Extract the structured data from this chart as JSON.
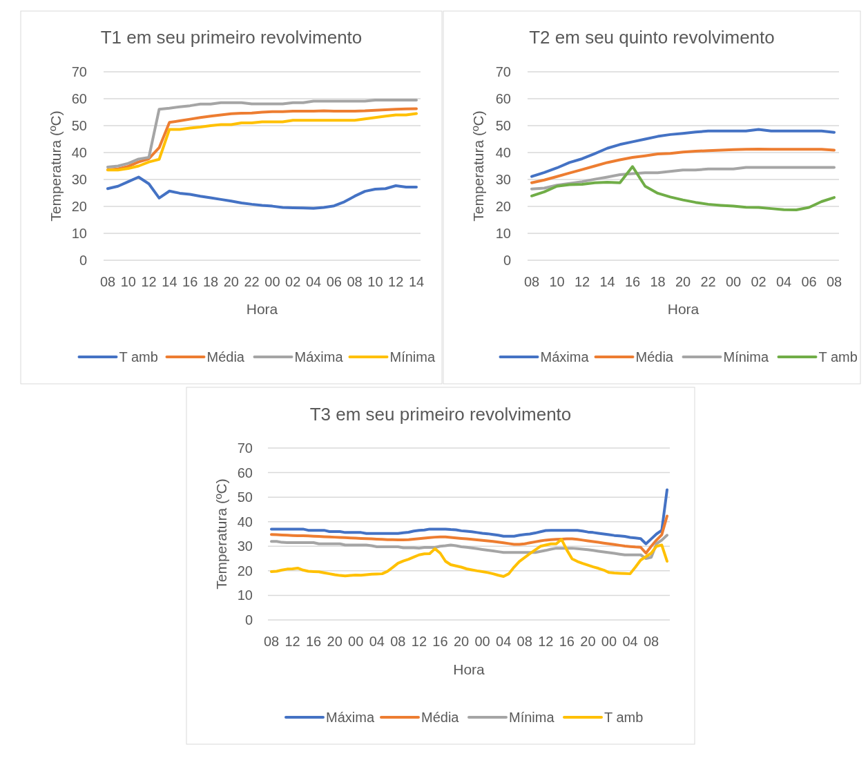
{
  "chart_data": [
    {
      "type": "line",
      "title": "T1 em seu primeiro revolvimento",
      "xlabel": "Hora",
      "ylabel": "Temperatura (ºC)",
      "ylim": [
        0,
        70
      ],
      "yticks": [
        0,
        10,
        20,
        30,
        40,
        50,
        60,
        70
      ],
      "grid": "y",
      "legend": "bottom",
      "categories": [
        "08",
        null,
        "10",
        null,
        "12",
        null,
        "14",
        null,
        "16",
        null,
        "18",
        null,
        "20",
        null,
        "22",
        null,
        "00",
        null,
        "02",
        null,
        "04",
        null,
        "06",
        null,
        "08",
        null,
        "10",
        null,
        "12",
        null,
        "14"
      ],
      "series": [
        {
          "name": "T amb",
          "color": "#4472c4",
          "values": [
            26.6,
            27.5,
            29.2,
            30.9,
            28.4,
            23.1,
            25.7,
            24.9,
            24.5,
            23.8,
            23.2,
            22.6,
            22.0,
            21.3,
            20.8,
            20.4,
            20.1,
            19.6,
            19.5,
            19.4,
            19.3,
            19.6,
            20.2,
            21.7,
            23.8,
            25.6,
            26.4,
            26.6,
            27.7,
            27.2,
            27.2
          ]
        },
        {
          "name": "Média",
          "color": "#ed7d31",
          "values": [
            33.6,
            33.9,
            34.9,
            36.5,
            37.7,
            41.8,
            51.2,
            51.8,
            52.4,
            53.0,
            53.5,
            54.0,
            54.4,
            54.6,
            54.7,
            55.0,
            55.2,
            55.2,
            55.4,
            55.4,
            55.4,
            55.5,
            55.4,
            55.4,
            55.4,
            55.5,
            55.7,
            55.9,
            56.1,
            56.2,
            56.3
          ]
        },
        {
          "name": "Máxima",
          "color": "#a5a5a5",
          "values": [
            34.6,
            35.0,
            36.0,
            37.6,
            38.2,
            56.1,
            56.5,
            57.0,
            57.4,
            58.0,
            58.0,
            58.5,
            58.5,
            58.5,
            58.1,
            58.1,
            58.1,
            58.1,
            58.5,
            58.5,
            59.1,
            59.1,
            59.1,
            59.1,
            59.1,
            59.1,
            59.5,
            59.5,
            59.5,
            59.5,
            59.5
          ]
        },
        {
          "name": "Mínima",
          "color": "#ffc000",
          "values": [
            33.5,
            33.5,
            34.1,
            35.0,
            36.5,
            37.5,
            48.6,
            48.6,
            49.1,
            49.5,
            50.0,
            50.4,
            50.4,
            51.0,
            51.0,
            51.4,
            51.4,
            51.4,
            52.0,
            52.0,
            52.0,
            52.0,
            52.0,
            52.0,
            52.0,
            52.5,
            53.0,
            53.5,
            54.0,
            54.0,
            54.5
          ]
        }
      ]
    },
    {
      "type": "line",
      "title": "T2 em seu quinto revolvimento",
      "xlabel": "Hora",
      "ylabel": "Temperatura (ºC)",
      "ylim": [
        0,
        70
      ],
      "yticks": [
        0,
        10,
        20,
        30,
        40,
        50,
        60,
        70
      ],
      "grid": "y",
      "legend": "bottom",
      "categories": [
        "08",
        null,
        "10",
        null,
        "12",
        null,
        "14",
        null,
        "16",
        null,
        "18",
        null,
        "20",
        null,
        "22",
        null,
        "00",
        null,
        "02",
        null,
        "04",
        null,
        "06",
        null,
        "08"
      ],
      "series": [
        {
          "name": "Máxima",
          "color": "#4472c4",
          "values": [
            31.1,
            32.6,
            34.3,
            36.3,
            37.7,
            39.6,
            41.6,
            43.0,
            44.0,
            45.0,
            46.0,
            46.7,
            47.1,
            47.6,
            48.0,
            48.0,
            48.0,
            48.0,
            48.6,
            48.0,
            48.0,
            48.0,
            48.0,
            48.0,
            47.5
          ]
        },
        {
          "name": "Média",
          "color": "#ed7d31",
          "values": [
            28.8,
            29.8,
            31.1,
            32.4,
            33.7,
            35.0,
            36.3,
            37.3,
            38.2,
            38.8,
            39.5,
            39.7,
            40.2,
            40.5,
            40.7,
            40.9,
            41.1,
            41.2,
            41.3,
            41.2,
            41.2,
            41.2,
            41.2,
            41.2,
            40.9
          ]
        },
        {
          "name": "Mínima",
          "color": "#a5a5a5",
          "values": [
            26.5,
            26.8,
            27.9,
            28.5,
            29.2,
            30.1,
            30.9,
            31.8,
            32.2,
            32.5,
            32.5,
            33.0,
            33.5,
            33.5,
            33.9,
            33.9,
            33.9,
            34.5,
            34.5,
            34.5,
            34.5,
            34.5,
            34.5,
            34.5,
            34.5
          ]
        },
        {
          "name": "T amb",
          "color": "#70ad47",
          "values": [
            23.9,
            25.4,
            27.5,
            28.1,
            28.2,
            28.8,
            29.0,
            28.8,
            34.8,
            27.5,
            24.9,
            23.5,
            22.4,
            21.5,
            20.8,
            20.4,
            20.1,
            19.7,
            19.6,
            19.2,
            18.8,
            18.7,
            19.6,
            21.8,
            23.3
          ]
        }
      ]
    },
    {
      "type": "line",
      "title": "T3 em seu primeiro revolvimento",
      "xlabel": "Hora",
      "ylabel": "Temperatura (ºC)",
      "ylim": [
        0,
        70
      ],
      "yticks": [
        0,
        10,
        20,
        30,
        40,
        50,
        60,
        70
      ],
      "grid": "y",
      "legend": "bottom",
      "categories": [
        "08",
        null,
        null,
        null,
        "12",
        null,
        null,
        null,
        "16",
        null,
        null,
        null,
        "20",
        null,
        null,
        null,
        "00",
        null,
        null,
        null,
        "04",
        null,
        null,
        null,
        "08",
        null,
        null,
        null,
        "12",
        null,
        null,
        null,
        "16",
        null,
        null,
        null,
        "20",
        null,
        null,
        null,
        "00",
        null,
        null,
        null,
        "04",
        null,
        null,
        null,
        "08",
        null,
        null,
        null,
        "12",
        null,
        null,
        null,
        "16",
        null,
        null,
        null,
        "20",
        null,
        null,
        null,
        "00",
        null,
        null,
        null,
        "04",
        null,
        null,
        null,
        "08",
        null,
        null,
        null
      ],
      "series": [
        {
          "name": "Máxima",
          "color": "#4472c4",
          "values": [
            37.0,
            37.0,
            37.0,
            37.0,
            37.0,
            37.0,
            37.0,
            36.5,
            36.5,
            36.5,
            36.5,
            36.0,
            36.0,
            36.0,
            35.6,
            35.6,
            35.6,
            35.6,
            35.2,
            35.2,
            35.2,
            35.2,
            35.2,
            35.2,
            35.2,
            35.5,
            35.7,
            36.2,
            36.5,
            36.6,
            37.0,
            37.0,
            37.0,
            37.0,
            36.8,
            36.7,
            36.3,
            36.1,
            35.9,
            35.6,
            35.3,
            35.1,
            34.8,
            34.5,
            34.1,
            34.1,
            34.1,
            34.5,
            34.8,
            35.0,
            35.4,
            35.9,
            36.4,
            36.5,
            36.5,
            36.5,
            36.5,
            36.5,
            36.5,
            36.2,
            35.8,
            35.6,
            35.3,
            35.0,
            34.7,
            34.4,
            34.2,
            34.0,
            33.6,
            33.4,
            33.1,
            31.0,
            33.0,
            35.0,
            36.5,
            53.0
          ]
        },
        {
          "name": "Média",
          "color": "#ed7d31",
          "values": [
            34.8,
            34.7,
            34.6,
            34.5,
            34.4,
            34.3,
            34.3,
            34.2,
            34.1,
            34.0,
            33.9,
            33.8,
            33.7,
            33.6,
            33.5,
            33.4,
            33.3,
            33.2,
            33.1,
            33.0,
            32.9,
            32.8,
            32.7,
            32.7,
            32.6,
            32.6,
            32.7,
            32.9,
            33.1,
            33.3,
            33.5,
            33.7,
            33.8,
            33.8,
            33.6,
            33.4,
            33.2,
            33.0,
            32.8,
            32.6,
            32.4,
            32.2,
            32.0,
            31.7,
            31.4,
            31.1,
            30.8,
            30.8,
            31.0,
            31.4,
            31.8,
            32.2,
            32.5,
            32.7,
            32.8,
            32.9,
            33.0,
            33.0,
            32.8,
            32.5,
            32.2,
            31.9,
            31.6,
            31.3,
            31.0,
            30.7,
            30.4,
            30.1,
            29.9,
            29.7,
            29.6,
            27.2,
            30.0,
            32.5,
            34.7,
            42.3
          ]
        },
        {
          "name": "Mínima",
          "color": "#a5a5a5",
          "values": [
            32.0,
            32.0,
            31.6,
            31.5,
            31.5,
            31.5,
            31.5,
            31.5,
            31.5,
            31.0,
            31.0,
            31.0,
            31.0,
            31.0,
            30.5,
            30.5,
            30.5,
            30.5,
            30.5,
            30.2,
            29.8,
            29.8,
            29.8,
            29.8,
            29.8,
            29.4,
            29.4,
            29.4,
            29.2,
            29.5,
            29.5,
            29.5,
            30.0,
            30.2,
            30.5,
            30.2,
            29.8,
            29.6,
            29.3,
            29.0,
            28.7,
            28.4,
            28.1,
            27.8,
            27.5,
            27.5,
            27.5,
            27.5,
            27.5,
            27.5,
            27.5,
            27.9,
            28.3,
            28.8,
            29.2,
            29.2,
            29.2,
            29.2,
            29.0,
            28.8,
            28.6,
            28.3,
            28.0,
            27.7,
            27.4,
            27.1,
            26.8,
            26.5,
            26.5,
            26.5,
            26.5,
            25.0,
            25.5,
            31.0,
            32.5,
            34.5
          ]
        },
        {
          "name": "T amb",
          "color": "#ffc000",
          "values": [
            19.7,
            19.8,
            20.3,
            20.7,
            20.8,
            21.1,
            20.3,
            19.8,
            19.7,
            19.6,
            19.2,
            18.8,
            18.4,
            18.1,
            17.9,
            18.1,
            18.3,
            18.2,
            18.4,
            18.6,
            18.7,
            18.8,
            19.8,
            21.4,
            23.1,
            24.0,
            24.7,
            25.6,
            26.5,
            26.9,
            27.0,
            29.0,
            27.2,
            23.9,
            22.5,
            22.0,
            21.5,
            20.8,
            20.4,
            20.0,
            19.7,
            19.3,
            18.8,
            18.2,
            17.7,
            18.8,
            21.5,
            23.8,
            25.4,
            27.0,
            28.5,
            30.0,
            30.5,
            31.0,
            31.0,
            32.8,
            28.5,
            24.9,
            23.8,
            23.0,
            22.3,
            21.6,
            21.0,
            20.3,
            19.3,
            19.1,
            19.0,
            18.9,
            18.8,
            21.5,
            24.4,
            25.8,
            27.2,
            30.0,
            30.5,
            23.9
          ]
        }
      ]
    }
  ]
}
